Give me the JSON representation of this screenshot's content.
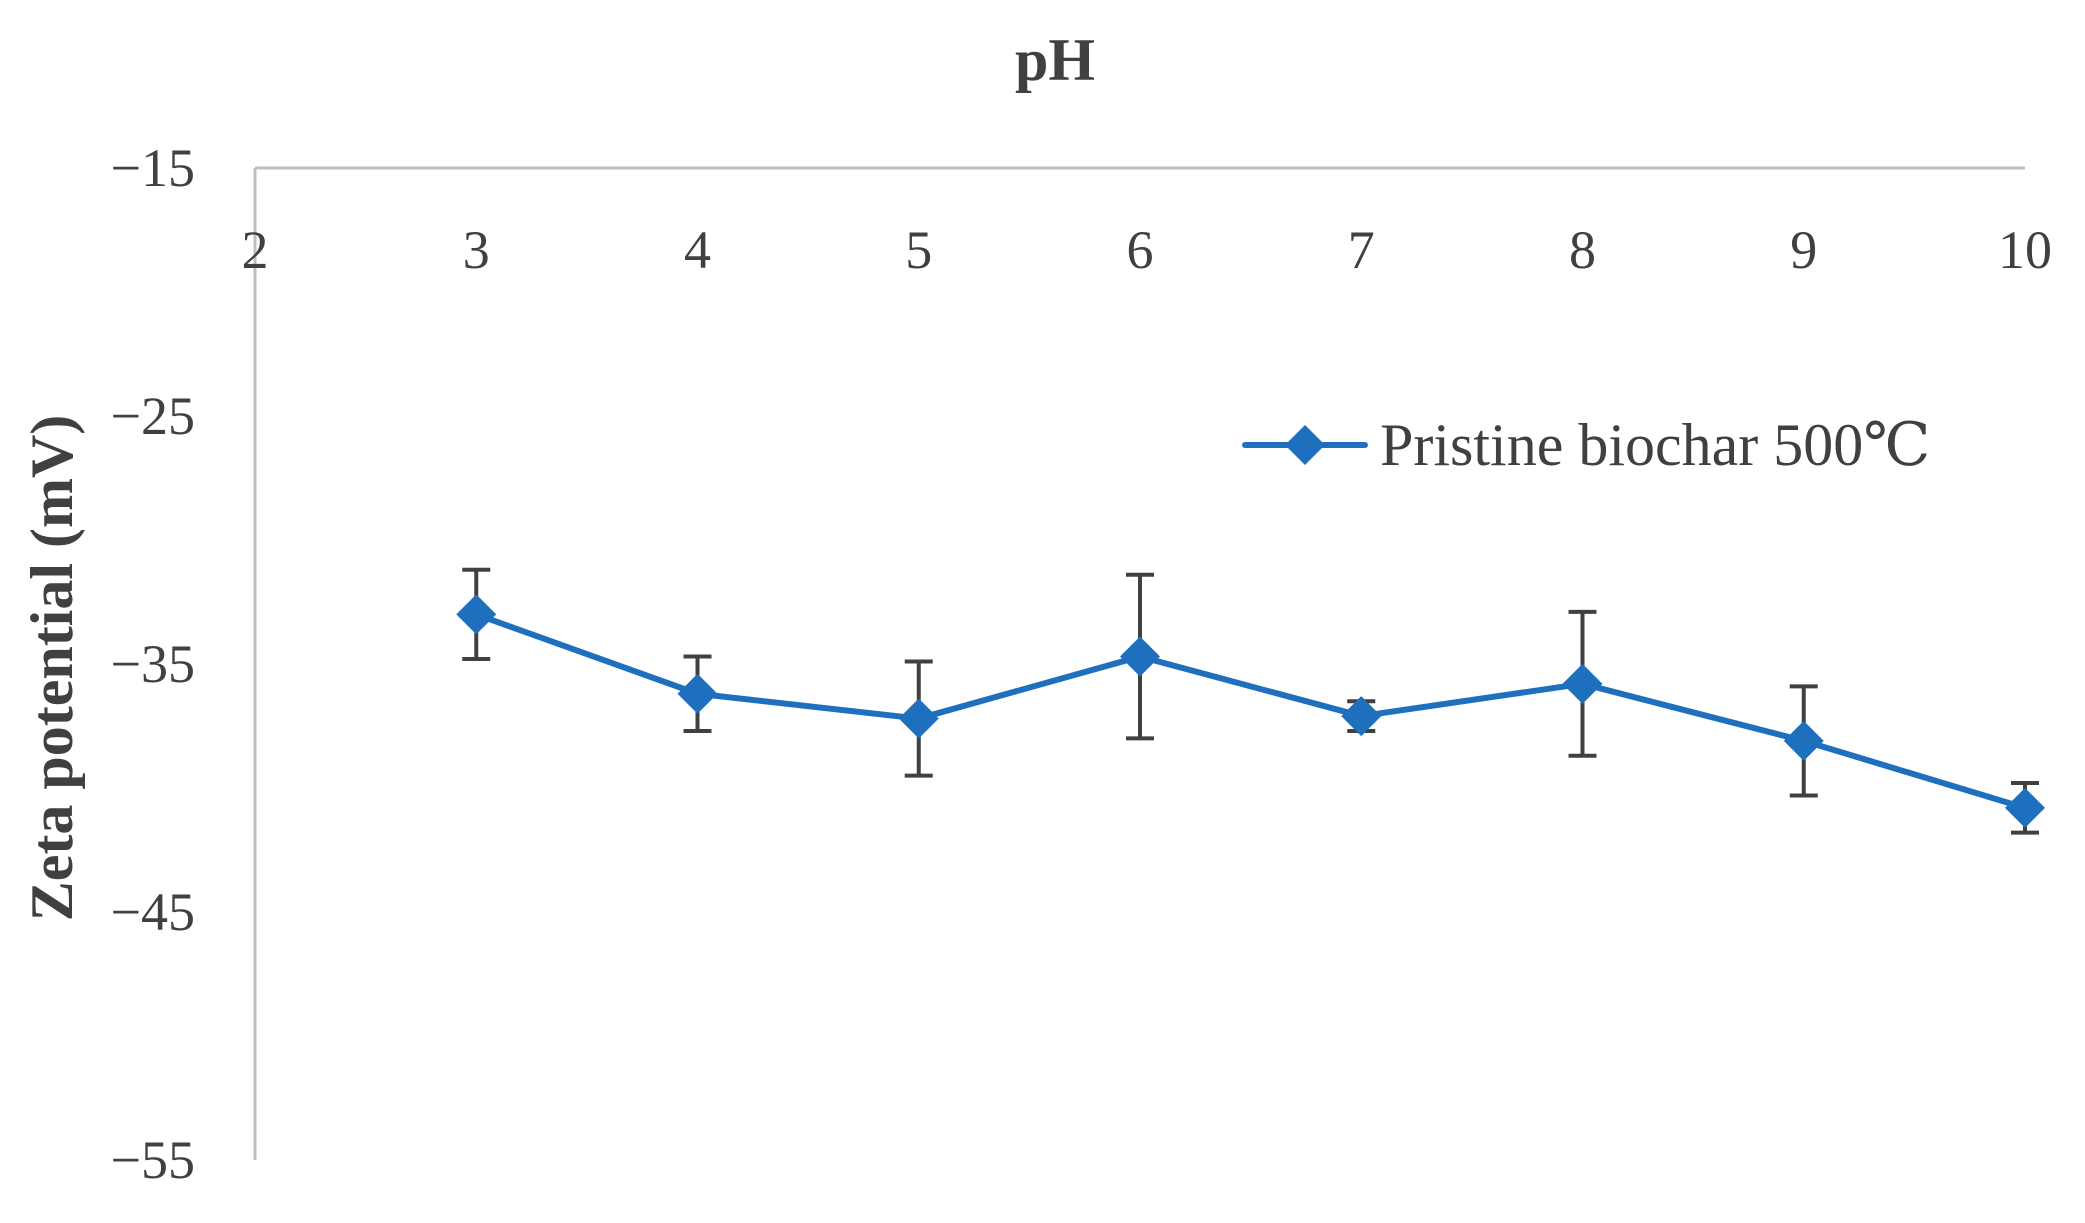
{
  "chart_data": {
    "type": "line",
    "xlabel": "pH",
    "ylabel": "Zeta potential (mV)",
    "xlim": [
      2,
      10
    ],
    "ylim": [
      -55,
      -15
    ],
    "x_ticks": [
      "2",
      "3",
      "4",
      "5",
      "6",
      "7",
      "8",
      "9",
      "10"
    ],
    "y_ticks": [
      "-15",
      "-25",
      "-35",
      "-45",
      "-55"
    ],
    "x_axis_position": "top",
    "grid": false,
    "legend_position": "top-right",
    "series": [
      {
        "name": "Pristine biochar 500℃",
        "color": "#1f6fbf",
        "marker": "diamond",
        "x": [
          3,
          4,
          5,
          6,
          7,
          8,
          9,
          10
        ],
        "y": [
          -33.0,
          -36.2,
          -37.2,
          -34.7,
          -37.1,
          -35.8,
          -38.1,
          -40.8
        ],
        "error": [
          1.8,
          1.5,
          2.3,
          3.3,
          0.6,
          2.9,
          2.2,
          1.0
        ]
      }
    ]
  }
}
